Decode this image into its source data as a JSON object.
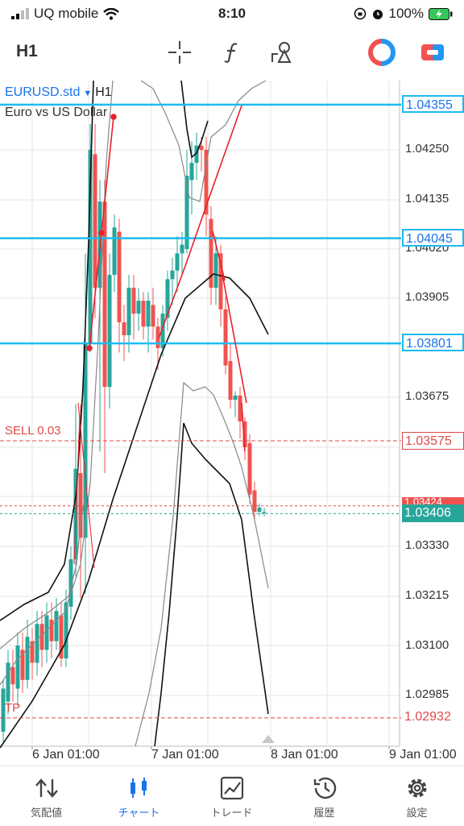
{
  "status_bar": {
    "carrier": "UQ mobile",
    "time": "8:10",
    "battery": "100%"
  },
  "toolbar": {
    "timeframe": "H1",
    "icons": [
      "crosshair-icon",
      "indicator-f-icon",
      "objects-icon",
      "one-click-trading-icon",
      "quick-trade-icon"
    ]
  },
  "chart": {
    "symbol": "EURUSD.std",
    "timeframe": "H1",
    "description": "Euro vs US Dollar",
    "price_ticks": [
      "1.04250",
      "1.04135",
      "1.04020",
      "1.03905",
      "1.03675",
      "1.03330",
      "1.03215",
      "1.03100",
      "1.02985"
    ],
    "x_labels": [
      "6 Jan 01:00",
      "7 Jan 01:00",
      "8 Jan 01:00",
      "9 Jan 01:00"
    ],
    "horizontal_lines": [
      {
        "price": "1.04355",
        "color": "#1cbbf0"
      },
      {
        "price": "1.04045",
        "color": "#1cbbf0"
      },
      {
        "price": "1.03801",
        "color": "#1cbbf0"
      }
    ],
    "sell_order": {
      "label": "SELL 0.03",
      "price": "1.03575",
      "color": "#e04848"
    },
    "ask_price": "1.03424",
    "bid_price": "1.03406",
    "tp": {
      "label": "TP",
      "price": "1.02932"
    },
    "colors": {
      "bull": "#26a69a",
      "bear": "#ef5350",
      "level": "#1cbbf0",
      "bid": "#26a69a"
    }
  },
  "tab_bar": {
    "items": [
      {
        "label": "気配値",
        "icon": "quotes-icon"
      },
      {
        "label": "チャート",
        "icon": "chart-icon",
        "active": true
      },
      {
        "label": "トレード",
        "icon": "trade-icon"
      },
      {
        "label": "履歴",
        "icon": "history-icon"
      },
      {
        "label": "設定",
        "icon": "settings-icon"
      }
    ]
  }
}
